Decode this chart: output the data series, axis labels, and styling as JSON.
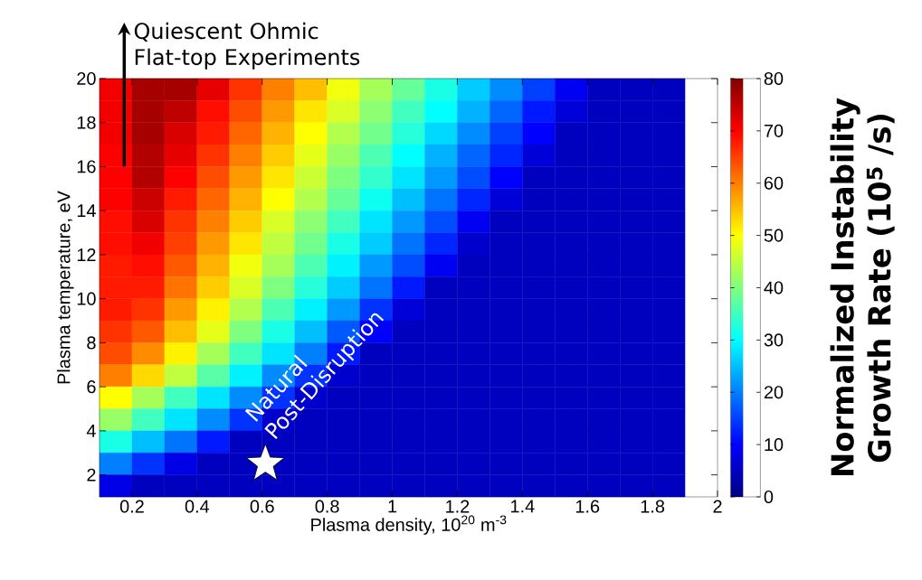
{
  "chart_data": {
    "type": "heatmap",
    "xlabel": "Plasma density, 10$^{20}$ m$^{-3}$",
    "ylabel": "Plasma temperature, eV",
    "clabel": "Normalized Instability Growth Rate (10$^{5}$ /s)",
    "xlim": [
      0.1,
      2
    ],
    "xticks": [
      0.2,
      0.4,
      0.6,
      0.8,
      1,
      1.2,
      1.4,
      1.6,
      1.8,
      2
    ],
    "ylim": [
      1,
      20
    ],
    "yticks": [
      2,
      4,
      6,
      8,
      10,
      12,
      14,
      16,
      18,
      20
    ],
    "clim": [
      0,
      80
    ],
    "cticks": [
      0,
      10,
      20,
      30,
      40,
      50,
      60,
      70,
      80
    ],
    "x": [
      0.15,
      0.25,
      0.35,
      0.45,
      0.55,
      0.65,
      0.75,
      0.85,
      0.95,
      1.05,
      1.15,
      1.25,
      1.35,
      1.45,
      1.55,
      1.65,
      1.75,
      1.85
    ],
    "y": [
      19.5,
      18.5,
      17.5,
      16.5,
      15.5,
      14.5,
      13.5,
      12.5,
      11.5,
      10.5,
      9.5,
      8.5,
      7.5,
      6.5,
      5.5,
      4.5,
      3.5,
      2.5,
      1.5
    ],
    "cells": [
      [
        71,
        77,
        77,
        72,
        66,
        60,
        55,
        49,
        43,
        38,
        32,
        26,
        21,
        15,
        9,
        5,
        5,
        5
      ],
      [
        71,
        77,
        75,
        69,
        64,
        58,
        52,
        47,
        41,
        35,
        30,
        24,
        18,
        12,
        7,
        5,
        5,
        5
      ],
      [
        71,
        77,
        73,
        68,
        62,
        56,
        50,
        44,
        39,
        33,
        27,
        21,
        15,
        10,
        5,
        5,
        5,
        5
      ],
      [
        70,
        76,
        72,
        66,
        60,
        54,
        48,
        42,
        36,
        30,
        24,
        18,
        13,
        7,
        5,
        5,
        5,
        5
      ],
      [
        70,
        76,
        70,
        64,
        58,
        52,
        46,
        40,
        34,
        28,
        22,
        16,
        10,
        5,
        5,
        5,
        5,
        5
      ],
      [
        70,
        74,
        68,
        62,
        56,
        50,
        44,
        38,
        31,
        25,
        19,
        13,
        7,
        5,
        5,
        5,
        5,
        5
      ],
      [
        69,
        73,
        66,
        60,
        54,
        47,
        41,
        35,
        28,
        22,
        16,
        9,
        5,
        5,
        5,
        5,
        5,
        5
      ],
      [
        69,
        71,
        65,
        58,
        52,
        45,
        39,
        32,
        26,
        19,
        13,
        6,
        5,
        5,
        5,
        5,
        5,
        5
      ],
      [
        68,
        69,
        63,
        56,
        49,
        43,
        36,
        29,
        22,
        16,
        9,
        5,
        5,
        5,
        5,
        5,
        5,
        5
      ],
      [
        68,
        68,
        61,
        54,
        47,
        40,
        33,
        26,
        19,
        12,
        5,
        5,
        5,
        5,
        5,
        5,
        5,
        5
      ],
      [
        68,
        66,
        58,
        51,
        44,
        36,
        29,
        22,
        14,
        7,
        5,
        5,
        5,
        5,
        5,
        5,
        5,
        5
      ],
      [
        66,
        63,
        55,
        48,
        40,
        32,
        25,
        17,
        10,
        5,
        5,
        5,
        5,
        5,
        5,
        5,
        5,
        5
      ],
      [
        64,
        59,
        51,
        43,
        35,
        28,
        20,
        12,
        5,
        5,
        5,
        5,
        5,
        5,
        5,
        5,
        5,
        5
      ],
      [
        60,
        53,
        45,
        37,
        29,
        21,
        14,
        6,
        5,
        5,
        5,
        5,
        5,
        5,
        5,
        5,
        5,
        5
      ],
      [
        50,
        43,
        35,
        28,
        21,
        14,
        6,
        5,
        5,
        5,
        5,
        5,
        5,
        5,
        5,
        5,
        5,
        5
      ],
      [
        42,
        35,
        28,
        21,
        14,
        6,
        5,
        5,
        5,
        5,
        5,
        5,
        5,
        5,
        5,
        5,
        5,
        5
      ],
      [
        32,
        25,
        19,
        12,
        5,
        5,
        5,
        5,
        5,
        5,
        5,
        5,
        5,
        5,
        5,
        5,
        5,
        5
      ],
      [
        20,
        14,
        8,
        5,
        5,
        5,
        5,
        5,
        5,
        5,
        5,
        5,
        5,
        5,
        5,
        5,
        5,
        5
      ],
      [
        8,
        5,
        5,
        5,
        5,
        5,
        5,
        5,
        5,
        5,
        5,
        5,
        5,
        5,
        5,
        5,
        5,
        5
      ]
    ],
    "series": [
      {
        "type": "scatter",
        "x": [
          0.61
        ],
        "values": [
          2.5
        ],
        "color": "#ffffff",
        "marker": "star"
      }
    ],
    "annotations": [
      "Quiescent Ohmic Flat-top Experiments",
      {
        "text": "Natural Post-Disruption",
        "x": 0.61,
        "y": 2.5
      }
    ]
  }
}
